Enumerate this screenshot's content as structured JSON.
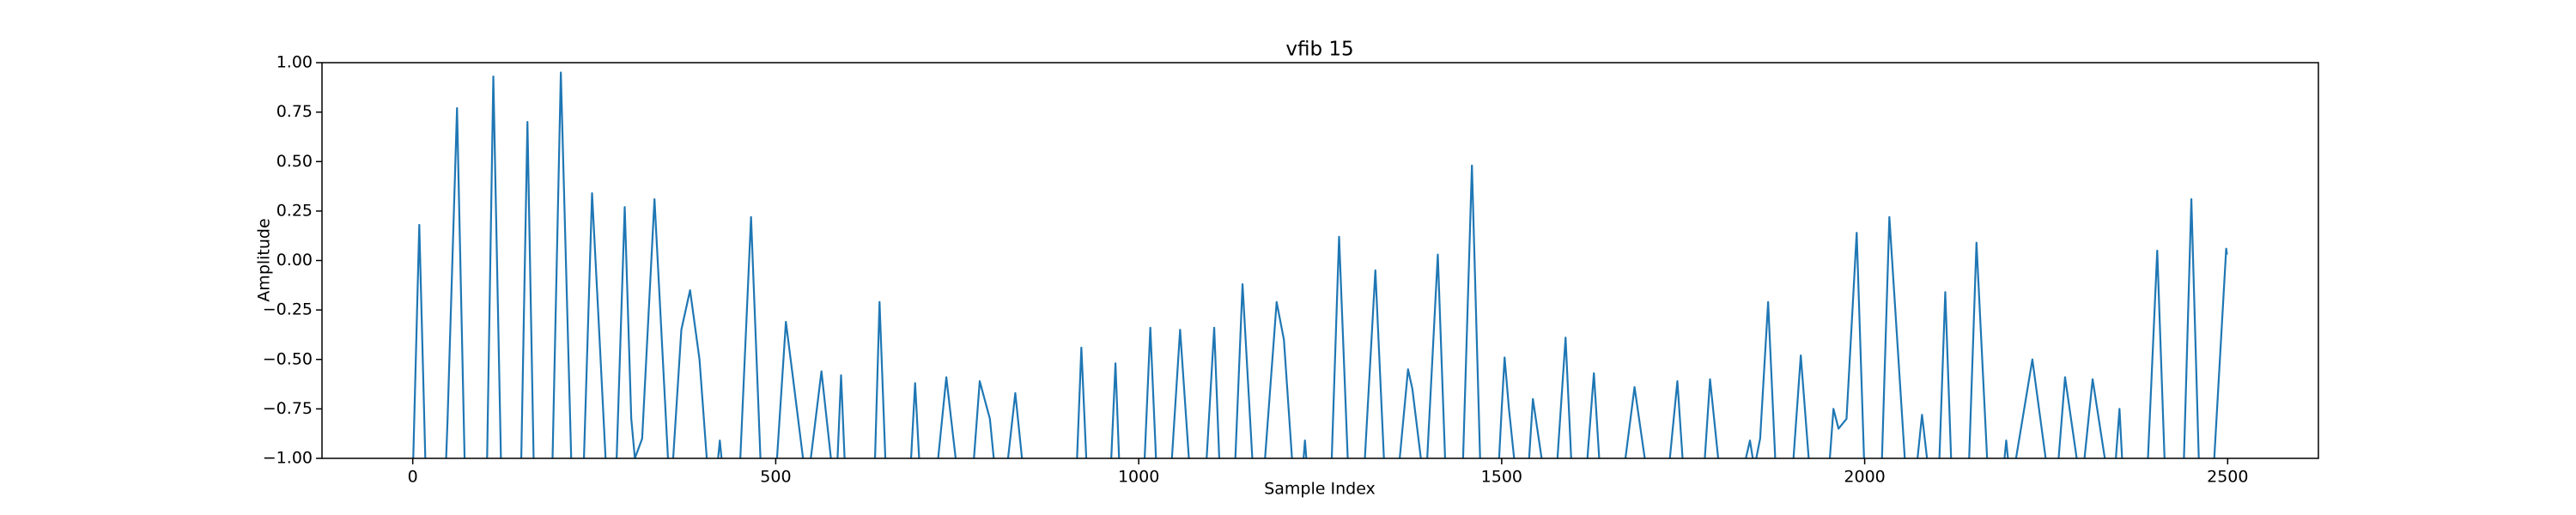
{
  "chart_data": {
    "type": "line",
    "title": "vfib 15",
    "x_label": "Sample Index",
    "y_label": "Amplitude",
    "xlim": [
      -125,
      2625
    ],
    "ylim": [
      -1,
      1
    ],
    "xticks": [
      0,
      500,
      1000,
      1500,
      2000,
      2500
    ],
    "yticks": [
      {
        "value": -1,
        "label": "−1.00"
      },
      {
        "value": -0.75,
        "label": "−0.75"
      },
      {
        "value": -0.5,
        "label": "−0.50"
      },
      {
        "value": -0.25,
        "label": "−0.25"
      },
      {
        "value": 0,
        "label": "0.00"
      },
      {
        "value": 0.25,
        "label": "0.25"
      },
      {
        "value": 0.5,
        "label": "0.50"
      },
      {
        "value": 0.75,
        "label": "0.75"
      },
      {
        "value": 1,
        "label": "1.00"
      }
    ],
    "series": [
      {
        "color": "#1f77b4",
        "x": [
          0,
          9,
          18,
          45,
          48,
          61,
          72,
          102,
          111,
          122,
          149,
          158,
          167,
          192,
          204,
          219,
          235,
          247,
          256,
          267,
          280,
          292,
          301,
          306,
          316,
          333,
          353,
          357,
          370,
          382,
          395,
          407,
          418,
          423,
          428,
          450,
          466,
          480,
          500,
          514,
          524,
          541,
          545,
          563,
          579,
          584,
          590,
          596,
          636,
          643,
          652,
          685,
          692,
          699,
          721,
          735,
          751,
          771,
          781,
          795,
          803,
          817,
          830,
          842,
          914,
          921,
          929,
          961,
          968,
          974,
          1007,
          1016,
          1025,
          1044,
          1057,
          1071,
          1092,
          1104,
          1112,
          1132,
          1143,
          1158,
          1172,
          1190,
          1200,
          1213,
          1225,
          1229,
          1233,
          1265,
          1276,
          1289,
          1310,
          1326,
          1339,
          1357,
          1371,
          1377,
          1392,
          1396,
          1412,
          1423,
          1446,
          1459,
          1471,
          1495,
          1500,
          1504,
          1510,
          1520,
          1536,
          1543,
          1559,
          1575,
          1588,
          1597,
          1616,
          1627,
          1636,
          1667,
          1683,
          1701,
          1729,
          1742,
          1751,
          1778,
          1787,
          1801,
          1830,
          1842,
          1848,
          1856,
          1867,
          1878,
          1900,
          1912,
          1925,
          1950,
          1957,
          1964,
          1975,
          1989,
          2000,
          2023,
          2034,
          2057,
          2070,
          2079,
          2089,
          2102,
          2111,
          2120,
          2143,
          2154,
          2170,
          2190,
          2195,
          2200,
          2204,
          2231,
          2253,
          2265,
          2276,
          2296,
          2300,
          2314,
          2335,
          2344,
          2351,
          2356,
          2389,
          2403,
          2414,
          2439,
          2450,
          2461,
          2480,
          2498,
          2499
        ],
        "values": [
          -1.1,
          0.18,
          -1.1,
          -1.1,
          -0.8,
          0.77,
          -1.1,
          -1.1,
          0.93,
          -1.1,
          -1.1,
          0.7,
          -1.1,
          -1.1,
          0.95,
          -1.1,
          -1.1,
          0.34,
          -0.3,
          -1.1,
          -1.1,
          0.27,
          -0.8,
          -1.0,
          -0.9,
          0.31,
          -1.1,
          -1.1,
          -0.35,
          -0.15,
          -0.5,
          -1.1,
          -1.1,
          -0.91,
          -1.1,
          -1.1,
          0.22,
          -1.1,
          -1.1,
          -0.31,
          -0.6,
          -1.1,
          -1.1,
          -0.56,
          -1.1,
          -1.1,
          -0.58,
          -1.1,
          -1.1,
          -0.21,
          -1.1,
          -1.1,
          -0.62,
          -1.1,
          -1.1,
          -0.59,
          -1.1,
          -1.1,
          -0.61,
          -0.8,
          -1.1,
          -1.1,
          -0.67,
          -1.1,
          -1.1,
          -0.44,
          -1.1,
          -1.1,
          -0.52,
          -1.1,
          -1.1,
          -0.34,
          -1.1,
          -1.1,
          -0.35,
          -1.1,
          -1.1,
          -0.34,
          -1.1,
          -1.1,
          -0.12,
          -1.1,
          -1.1,
          -0.21,
          -0.4,
          -1.1,
          -1.1,
          -0.91,
          -1.1,
          -1.1,
          0.12,
          -1.1,
          -1.1,
          -0.05,
          -1.1,
          -1.1,
          -0.55,
          -0.65,
          -1.1,
          -1.1,
          0.03,
          -1.1,
          -1.1,
          0.48,
          -1.1,
          -1.1,
          -0.75,
          -0.49,
          -0.75,
          -1.1,
          -1.1,
          -0.7,
          -1.1,
          -1.1,
          -0.39,
          -1.1,
          -1.1,
          -0.57,
          -1.1,
          -1.1,
          -0.64,
          -1.1,
          -1.1,
          -0.61,
          -1.1,
          -1.1,
          -0.6,
          -1.1,
          -1.1,
          -0.91,
          -1.05,
          -0.9,
          -0.21,
          -1.1,
          -1.1,
          -0.48,
          -1.1,
          -1.1,
          -0.75,
          -0.85,
          -0.8,
          0.14,
          -1.1,
          -1.1,
          0.22,
          -1.1,
          -1.1,
          -0.78,
          -1.1,
          -1.1,
          -0.16,
          -1.1,
          -1.1,
          0.09,
          -1.1,
          -1.1,
          -0.91,
          -1.1,
          -1.1,
          -0.5,
          -1.1,
          -1.1,
          -0.59,
          -1.1,
          -1.1,
          -0.6,
          -1.1,
          -1.1,
          -0.75,
          -1.1,
          -1.1,
          0.05,
          -1.1,
          -1.1,
          0.31,
          -1.1,
          -1.1,
          0.06,
          0.03
        ]
      }
    ]
  }
}
